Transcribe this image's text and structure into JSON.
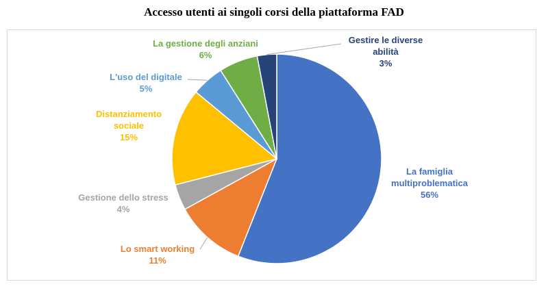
{
  "chart_data": {
    "type": "pie",
    "title": "Accesso utenti ai singoli corsi della piattaforma FAD",
    "slices": [
      {
        "label": "La famiglia multiproblematica",
        "value": 56,
        "value_label": "56%",
        "color": "#4472C4"
      },
      {
        "label": "Lo smart working",
        "value": 11,
        "value_label": "11%",
        "color": "#ED7D31"
      },
      {
        "label": "Gestione dello stress",
        "value": 4,
        "value_label": "4%",
        "color": "#A5A5A5"
      },
      {
        "label": "Distanziamento sociale",
        "value": 15,
        "value_label": "15%",
        "color": "#FFC000"
      },
      {
        "label": "L'uso del digitale",
        "value": 5,
        "value_label": "5%",
        "color": "#5B9BD5"
      },
      {
        "label": "La gestione degli anziani",
        "value": 6,
        "value_label": "6%",
        "color": "#70AD47"
      },
      {
        "label": "Gestire le diverse abilità",
        "value": 3,
        "value_label": "3%",
        "color": "#264478"
      }
    ]
  }
}
